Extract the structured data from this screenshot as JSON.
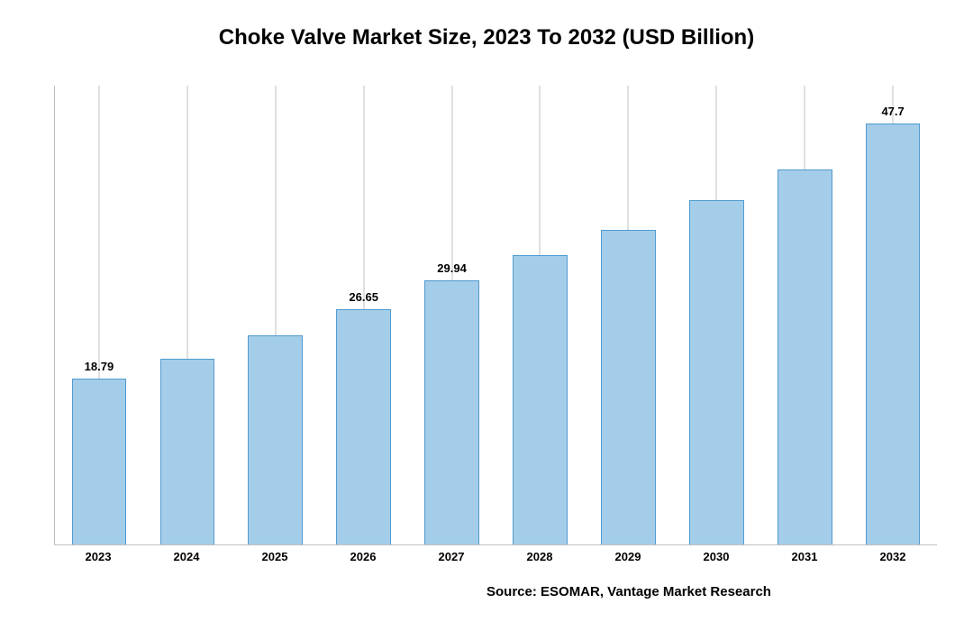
{
  "chart": {
    "type": "bar",
    "title": "Choke Valve Market Size, 2023 To 2032 (USD Billion)",
    "title_fontsize": 24,
    "title_color": "#000000",
    "background_color": "#ffffff",
    "categories": [
      "2023",
      "2024",
      "2025",
      "2026",
      "2027",
      "2028",
      "2029",
      "2030",
      "2031",
      "2032"
    ],
    "values": [
      18.79,
      21.0,
      23.7,
      26.65,
      29.94,
      32.8,
      35.7,
      39.0,
      42.5,
      47.7
    ],
    "show_label": [
      true,
      false,
      false,
      true,
      true,
      false,
      false,
      false,
      false,
      true
    ],
    "labels": [
      "18.79",
      "",
      "",
      "26.65",
      "29.94",
      "",
      "",
      "",
      "",
      "47.7"
    ],
    "bar_color": "#a4cde9",
    "bar_border_color": "#529bd0",
    "bar_width": 0.62,
    "ylim": [
      0,
      52
    ],
    "axis_color": "#c0c0c0",
    "grid_color": "#c0c0c0",
    "x_label_fontsize": 13,
    "x_label_weight": "bold",
    "value_label_fontsize": 13,
    "value_label_weight": "bold",
    "source_text": "Source: ESOMAR, Vantage Market Research",
    "source_fontsize": 15
  }
}
